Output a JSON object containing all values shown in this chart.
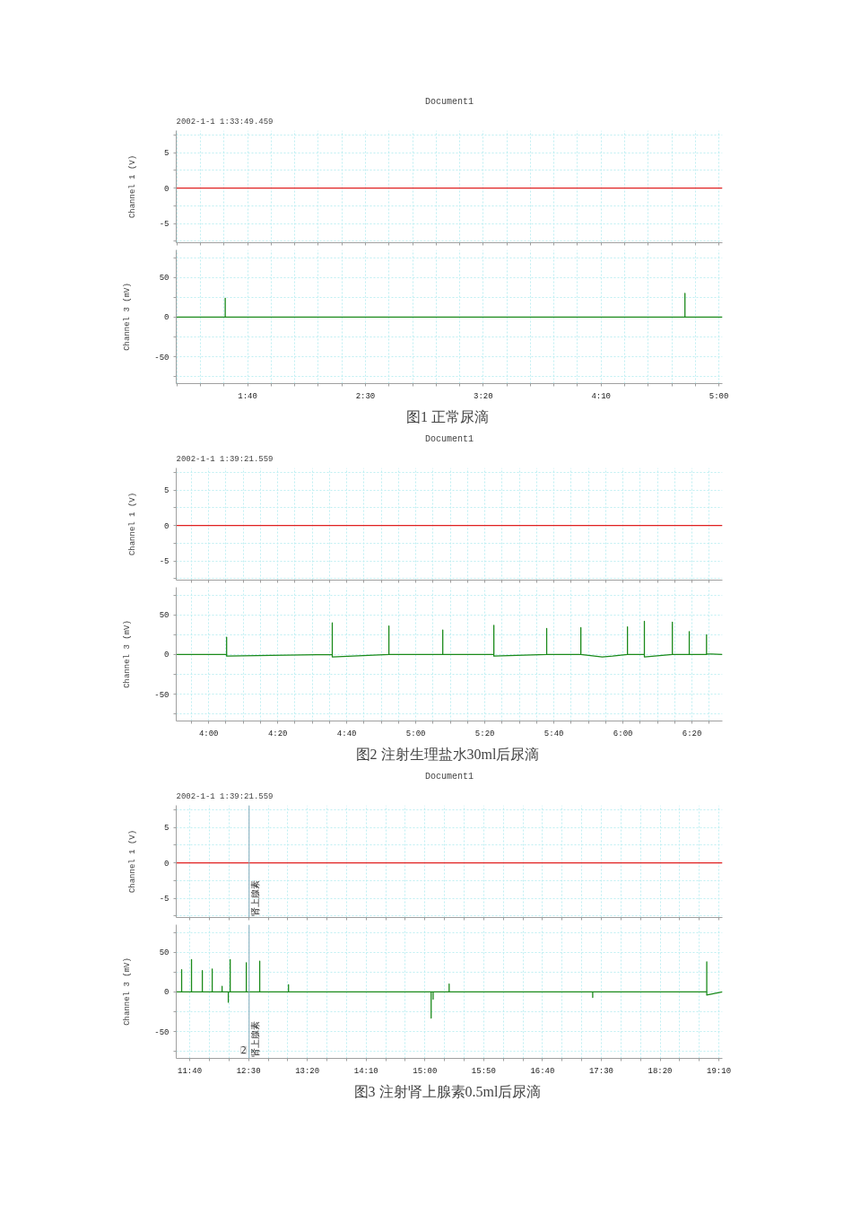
{
  "chart_data": [
    {
      "type": "line",
      "title": "Document1",
      "subtitle": "2002-1-1 1:33:49.459",
      "ylabel": "Channel 1 (V)",
      "series": [
        {
          "color": "#e02020",
          "x": [
            69.7,
            301.5
          ],
          "values": [
            0,
            0
          ]
        }
      ],
      "xlim": [
        69.7,
        301.5
      ],
      "ylim": [
        -7.7,
        8.1
      ],
      "xticks": [
        {
          "value": 70,
          "label": null
        },
        {
          "value": 80,
          "label": null
        },
        {
          "value": 90,
          "label": null
        },
        {
          "value": 100,
          "label": null
        },
        {
          "value": 110,
          "label": null
        },
        {
          "value": 120,
          "label": null
        },
        {
          "value": 130,
          "label": null
        },
        {
          "value": 140,
          "label": null
        },
        {
          "value": 150,
          "label": null
        },
        {
          "value": 160,
          "label": null
        },
        {
          "value": 170,
          "label": null
        },
        {
          "value": 180,
          "label": null
        },
        {
          "value": 190,
          "label": null
        },
        {
          "value": 200,
          "label": null
        },
        {
          "value": 210,
          "label": null
        },
        {
          "value": 220,
          "label": null
        },
        {
          "value": 230,
          "label": null
        },
        {
          "value": 240,
          "label": null
        },
        {
          "value": 250,
          "label": null
        },
        {
          "value": 260,
          "label": null
        },
        {
          "value": 270,
          "label": null
        },
        {
          "value": 280,
          "label": null
        },
        {
          "value": 290,
          "label": null
        },
        {
          "value": 300,
          "label": null
        }
      ],
      "yticks": [
        {
          "value": -7.5,
          "label": null
        },
        -5,
        {
          "value": -2.5,
          "label": null
        },
        0,
        {
          "value": 2.5,
          "label": null
        },
        5,
        {
          "value": 7.5,
          "label": null
        }
      ],
      "grid": true,
      "tick_labels": "y"
    },
    {
      "type": "line",
      "ylabel": "Channel 3 (mV)",
      "annotations": [
        "图1  正常尿滴"
      ],
      "series": [
        {
          "color": "#1a8a1a",
          "x": [
            69.7,
            90.5,
            90.5,
            90.5,
            285.6,
            285.6,
            285.6,
            301.5
          ],
          "values": [
            0,
            0,
            24,
            0,
            0,
            30,
            0,
            0
          ]
        }
      ],
      "xlim": [
        69.7,
        301.5
      ],
      "ylim": [
        -84,
        85
      ],
      "xticks": [
        {
          "value": 70,
          "label": null
        },
        {
          "value": 80,
          "label": null
        },
        {
          "value": 90,
          "label": null
        },
        {
          "value": 100,
          "label": "1:40"
        },
        {
          "value": 110,
          "label": null
        },
        {
          "value": 120,
          "label": null
        },
        {
          "value": 130,
          "label": null
        },
        {
          "value": 140,
          "label": null
        },
        {
          "value": 150,
          "label": "2:30"
        },
        {
          "value": 160,
          "label": null
        },
        {
          "value": 170,
          "label": null
        },
        {
          "value": 180,
          "label": null
        },
        {
          "value": 190,
          "label": null
        },
        {
          "value": 200,
          "label": "3:20"
        },
        {
          "value": 210,
          "label": null
        },
        {
          "value": 220,
          "label": null
        },
        {
          "value": 230,
          "label": null
        },
        {
          "value": 240,
          "label": null
        },
        {
          "value": 250,
          "label": "4:10"
        },
        {
          "value": 260,
          "label": null
        },
        {
          "value": 270,
          "label": null
        },
        {
          "value": 280,
          "label": null
        },
        {
          "value": 290,
          "label": null
        },
        {
          "value": 300,
          "label": "5:00"
        }
      ],
      "yticks": [
        {
          "value": -75,
          "label": null
        },
        -50,
        {
          "value": -25,
          "label": null
        },
        0,
        {
          "value": 25,
          "label": null
        },
        50,
        {
          "value": 75,
          "label": null
        }
      ],
      "grid": true
    },
    {
      "type": "line",
      "title": "Document1",
      "subtitle": "2002-1-1 1:39:21.559",
      "ylabel": "Channel 1 (V)",
      "series": [
        {
          "color": "#e02020",
          "x": [
            230.6,
            388.8
          ],
          "values": [
            0,
            0
          ]
        }
      ],
      "xlim": [
        230.6,
        388.8
      ],
      "ylim": [
        -7.7,
        8.1
      ],
      "xticks": [
        {
          "value": 235,
          "label": null
        },
        {
          "value": 240,
          "label": null
        },
        {
          "value": 245,
          "label": null
        },
        {
          "value": 250,
          "label": null
        },
        {
          "value": 255,
          "label": null
        },
        {
          "value": 260,
          "label": null
        },
        {
          "value": 265,
          "label": null
        },
        {
          "value": 270,
          "label": null
        },
        {
          "value": 275,
          "label": null
        },
        {
          "value": 280,
          "label": null
        },
        {
          "value": 285,
          "label": null
        },
        {
          "value": 290,
          "label": null
        },
        {
          "value": 295,
          "label": null
        },
        {
          "value": 300,
          "label": null
        },
        {
          "value": 305,
          "label": null
        },
        {
          "value": 310,
          "label": null
        },
        {
          "value": 315,
          "label": null
        },
        {
          "value": 320,
          "label": null
        },
        {
          "value": 325,
          "label": null
        },
        {
          "value": 330,
          "label": null
        },
        {
          "value": 335,
          "label": null
        },
        {
          "value": 340,
          "label": null
        },
        {
          "value": 345,
          "label": null
        },
        {
          "value": 350,
          "label": null
        },
        {
          "value": 355,
          "label": null
        },
        {
          "value": 360,
          "label": null
        },
        {
          "value": 365,
          "label": null
        },
        {
          "value": 370,
          "label": null
        },
        {
          "value": 375,
          "label": null
        },
        {
          "value": 380,
          "label": null
        },
        {
          "value": 385,
          "label": null
        }
      ],
      "yticks": [
        {
          "value": -7.5,
          "label": null
        },
        -5,
        {
          "value": -2.5,
          "label": null
        },
        0,
        {
          "value": 2.5,
          "label": null
        },
        5,
        {
          "value": 7.5,
          "label": null
        }
      ],
      "grid": true,
      "tick_labels": "y"
    },
    {
      "type": "line",
      "ylabel": "Channel 3 (mV)",
      "annotations": [
        "图2  注射生理盐水30ml后尿滴"
      ],
      "series": [
        {
          "color": "#1a8a1a",
          "x": [
            230.6,
            245.2,
            245.2,
            245.2,
            258,
            275.8,
            275.8,
            275.8,
            292.2,
            292.2,
            292.2,
            307.8,
            307.8,
            307.8,
            322.6,
            322.6,
            322.6,
            337.9,
            337.9,
            337.9,
            347.8,
            347.8,
            347.8,
            354,
            357,
            361.3,
            361.3,
            361.3,
            366.2,
            366.2,
            366.2,
            374.3,
            374.3,
            374.3,
            379.2,
            379.2,
            379.2,
            384.2,
            384.2,
            384.2,
            388.8
          ],
          "values": [
            0,
            0,
            22,
            -2,
            -1,
            0,
            40,
            -3,
            0,
            36,
            0,
            0,
            31,
            0,
            0,
            37,
            -2,
            0,
            33,
            0,
            0,
            34,
            0,
            -3,
            -2,
            0,
            35,
            0,
            0,
            42,
            -3,
            0,
            41,
            0,
            0,
            29,
            0,
            0,
            25,
            1,
            0
          ]
        }
      ],
      "xlim": [
        230.6,
        388.8
      ],
      "ylim": [
        -84,
        85
      ],
      "xticks": [
        {
          "value": 235,
          "label": null
        },
        {
          "value": 240,
          "label": "4:00"
        },
        {
          "value": 245,
          "label": null
        },
        {
          "value": 250,
          "label": null
        },
        {
          "value": 255,
          "label": null
        },
        {
          "value": 260,
          "label": "4:20"
        },
        {
          "value": 265,
          "label": null
        },
        {
          "value": 270,
          "label": null
        },
        {
          "value": 275,
          "label": null
        },
        {
          "value": 280,
          "label": "4:40"
        },
        {
          "value": 285,
          "label": null
        },
        {
          "value": 290,
          "label": null
        },
        {
          "value": 295,
          "label": null
        },
        {
          "value": 300,
          "label": "5:00"
        },
        {
          "value": 305,
          "label": null
        },
        {
          "value": 310,
          "label": null
        },
        {
          "value": 315,
          "label": null
        },
        {
          "value": 320,
          "label": "5:20"
        },
        {
          "value": 325,
          "label": null
        },
        {
          "value": 330,
          "label": null
        },
        {
          "value": 335,
          "label": null
        },
        {
          "value": 340,
          "label": "5:40"
        },
        {
          "value": 345,
          "label": null
        },
        {
          "value": 350,
          "label": null
        },
        {
          "value": 355,
          "label": null
        },
        {
          "value": 360,
          "label": "6:00"
        },
        {
          "value": 365,
          "label": null
        },
        {
          "value": 370,
          "label": null
        },
        {
          "value": 375,
          "label": null
        },
        {
          "value": 380,
          "label": "6:20"
        },
        {
          "value": 385,
          "label": null
        }
      ],
      "yticks": [
        {
          "value": -75,
          "label": null
        },
        -50,
        {
          "value": -25,
          "label": null
        },
        0,
        {
          "value": 25,
          "label": null
        },
        50,
        {
          "value": 75,
          "label": null
        }
      ],
      "grid": true
    },
    {
      "type": "line",
      "title": "Document1",
      "subtitle": "2002-1-1 1:39:21.559",
      "ylabel": "Channel 1 (V)",
      "series": [
        {
          "color": "#e02020",
          "x": [
            688.5,
            1153
          ],
          "values": [
            0,
            0
          ]
        }
      ],
      "xlim": [
        688.5,
        1153
      ],
      "ylim": [
        -7.7,
        8.1
      ],
      "xticks": [
        {
          "value": 700,
          "label": null
        },
        {
          "value": 716.7,
          "label": null
        },
        {
          "value": 733.3,
          "label": null
        },
        {
          "value": 750,
          "label": null
        },
        {
          "value": 766.7,
          "label": null
        },
        {
          "value": 783.3,
          "label": null
        },
        {
          "value": 800,
          "label": null
        },
        {
          "value": 816.7,
          "label": null
        },
        {
          "value": 833.3,
          "label": null
        },
        {
          "value": 850,
          "label": null
        },
        {
          "value": 866.7,
          "label": null
        },
        {
          "value": 883.3,
          "label": null
        },
        {
          "value": 900,
          "label": null
        },
        {
          "value": 916.7,
          "label": null
        },
        {
          "value": 933.3,
          "label": null
        },
        {
          "value": 950,
          "label": null
        },
        {
          "value": 966.7,
          "label": null
        },
        {
          "value": 983.3,
          "label": null
        },
        {
          "value": 1000,
          "label": null
        },
        {
          "value": 1016.7,
          "label": null
        },
        {
          "value": 1033.3,
          "label": null
        },
        {
          "value": 1050,
          "label": null
        },
        {
          "value": 1066.7,
          "label": null
        },
        {
          "value": 1083.3,
          "label": null
        },
        {
          "value": 1100,
          "label": null
        },
        {
          "value": 1116.7,
          "label": null
        },
        {
          "value": 1133.3,
          "label": null
        },
        {
          "value": 1150,
          "label": null
        }
      ],
      "yticks": [
        {
          "value": -7.5,
          "label": null
        },
        -5,
        {
          "value": -2.5,
          "label": null
        },
        0,
        {
          "value": 2.5,
          "label": null
        },
        5,
        {
          "value": 7.5,
          "label": null
        }
      ],
      "ref_lines": [
        {
          "axis": "x",
          "value": 750.5,
          "label": "肾上腺素",
          "color": "#7fa8b8"
        }
      ],
      "grid": true,
      "tick_labels": "y"
    },
    {
      "type": "line",
      "ylabel": "Channel 3 (mV)",
      "annotations": [
        {
          "text": "2",
          "x": 750.5,
          "y": -78
        },
        "图3  注射肾上腺素0.5ml后尿滴"
      ],
      "series": [
        {
          "color": "#1a8a1a",
          "x": [
            688.5,
            693.1,
            693.1,
            693.1,
            701.5,
            701.5,
            701.5,
            710.7,
            710.7,
            710.7,
            719.1,
            719.1,
            719.1,
            727.5,
            727.5,
            727.5,
            732.8,
            732.8,
            732.8,
            734.4,
            734.4,
            734.4,
            748.1,
            748.1,
            748.1,
            759.5,
            759.5,
            759.5,
            784.0,
            784.0,
            784.0,
            905.3,
            905.3,
            905.3,
            907,
            907,
            907,
            920.6,
            920.6,
            920.6,
            1042.7,
            1042.7,
            1042.7,
            1139.7,
            1139.7,
            1139.7,
            1153
          ],
          "values": [
            0,
            0,
            28,
            0,
            0,
            41,
            0,
            0,
            27,
            0,
            0,
            29,
            0,
            0,
            7,
            0,
            0,
            -13,
            0,
            0,
            41,
            0,
            0,
            37,
            0,
            0,
            39,
            0,
            0,
            9,
            0,
            0,
            -33,
            0,
            0,
            -9,
            0,
            0,
            10,
            0,
            0,
            -7,
            0,
            0,
            38,
            -4,
            0
          ]
        }
      ],
      "xlim": [
        688.5,
        1153
      ],
      "ylim": [
        -84,
        85
      ],
      "xticks": [
        {
          "value": 700,
          "label": "11:40"
        },
        {
          "value": 716.7,
          "label": null
        },
        {
          "value": 733.3,
          "label": null
        },
        {
          "value": 750,
          "label": "12:30"
        },
        {
          "value": 766.7,
          "label": null
        },
        {
          "value": 783.3,
          "label": null
        },
        {
          "value": 800,
          "label": "13:20"
        },
        {
          "value": 816.7,
          "label": null
        },
        {
          "value": 833.3,
          "label": null
        },
        {
          "value": 850,
          "label": "14:10"
        },
        {
          "value": 866.7,
          "label": null
        },
        {
          "value": 883.3,
          "label": null
        },
        {
          "value": 900,
          "label": "15:00"
        },
        {
          "value": 916.7,
          "label": null
        },
        {
          "value": 933.3,
          "label": null
        },
        {
          "value": 950,
          "label": "15:50"
        },
        {
          "value": 966.7,
          "label": null
        },
        {
          "value": 983.3,
          "label": null
        },
        {
          "value": 1000,
          "label": "16:40"
        },
        {
          "value": 1016.7,
          "label": null
        },
        {
          "value": 1033.3,
          "label": null
        },
        {
          "value": 1050,
          "label": "17:30"
        },
        {
          "value": 1066.7,
          "label": null
        },
        {
          "value": 1083.3,
          "label": null
        },
        {
          "value": 1100,
          "label": "18:20"
        },
        {
          "value": 1116.7,
          "label": null
        },
        {
          "value": 1133.3,
          "label": null
        },
        {
          "value": 1150,
          "label": "19:10"
        }
      ],
      "yticks": [
        {
          "value": -75,
          "label": null
        },
        -50,
        {
          "value": -25,
          "label": null
        },
        0,
        {
          "value": 25,
          "label": null
        },
        50,
        {
          "value": 75,
          "label": null
        }
      ],
      "ref_lines": [
        {
          "axis": "x",
          "value": 750.5,
          "label": "肾上腺素",
          "color": "#7fa8b8"
        }
      ],
      "grid": true
    }
  ]
}
